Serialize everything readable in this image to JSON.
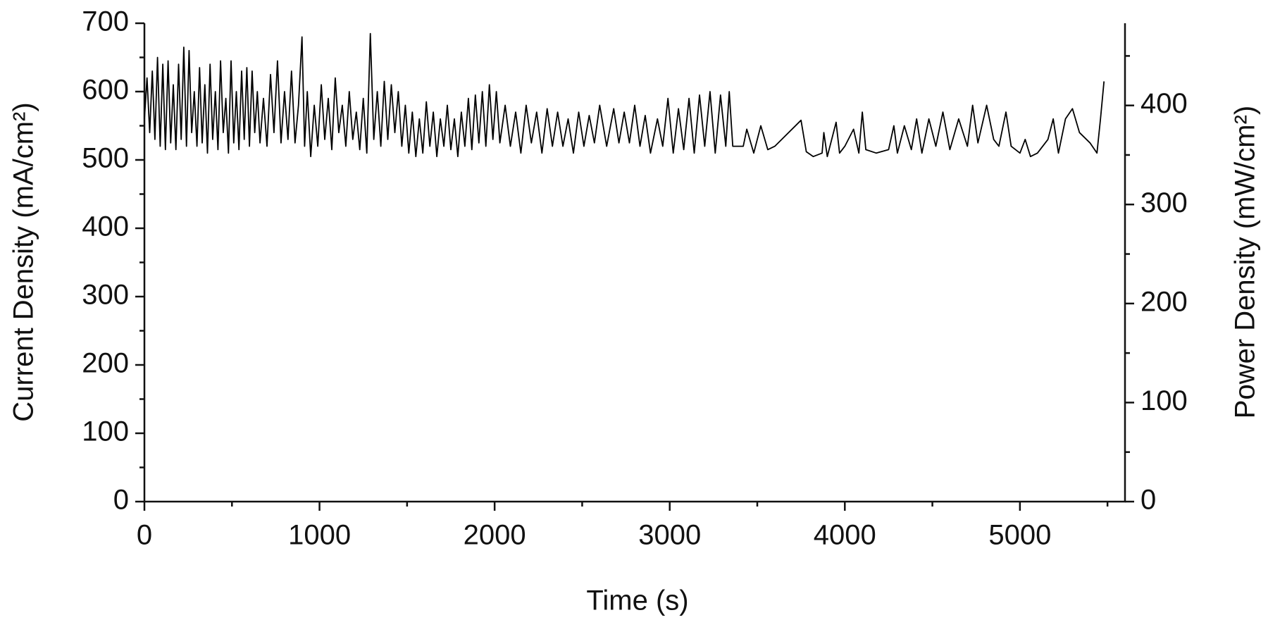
{
  "chart_data": {
    "type": "line",
    "xlabel": "Time (s)",
    "ylabel": "Current Density (mA/cm²)",
    "y2label": "Power Density (mW/cm²)",
    "color": "#000000",
    "xlim": [
      0,
      5600
    ],
    "xticks": [
      0,
      1000,
      2000,
      3000,
      4000,
      5000
    ],
    "xminorticks": [
      500,
      1500,
      2500,
      3500,
      4500,
      5500
    ],
    "ylim": [
      0,
      700
    ],
    "yticks": [
      0,
      100,
      200,
      300,
      400,
      500,
      600,
      700
    ],
    "yminorticks": [
      50,
      150,
      250,
      350,
      450,
      550,
      650
    ],
    "y2lim": [
      0,
      483
    ],
    "y2ticks": [
      0,
      100,
      200,
      300,
      400
    ],
    "y2minorticks": [
      50,
      150,
      250,
      350,
      450
    ],
    "x": [
      0,
      15,
      30,
      45,
      60,
      75,
      90,
      105,
      120,
      135,
      150,
      165,
      180,
      195,
      210,
      225,
      240,
      255,
      270,
      285,
      300,
      315,
      330,
      345,
      360,
      375,
      390,
      405,
      420,
      435,
      450,
      465,
      480,
      495,
      510,
      525,
      540,
      555,
      570,
      585,
      600,
      615,
      630,
      645,
      660,
      680,
      700,
      720,
      740,
      760,
      780,
      800,
      820,
      840,
      860,
      880,
      900,
      915,
      930,
      950,
      970,
      990,
      1010,
      1030,
      1050,
      1070,
      1090,
      1110,
      1130,
      1150,
      1170,
      1190,
      1210,
      1230,
      1250,
      1270,
      1290,
      1310,
      1330,
      1350,
      1370,
      1390,
      1410,
      1430,
      1450,
      1470,
      1490,
      1510,
      1530,
      1550,
      1570,
      1590,
      1610,
      1630,
      1650,
      1670,
      1690,
      1710,
      1730,
      1750,
      1770,
      1790,
      1810,
      1830,
      1850,
      1870,
      1890,
      1910,
      1930,
      1950,
      1970,
      1990,
      2010,
      2030,
      2060,
      2090,
      2120,
      2150,
      2180,
      2210,
      2240,
      2270,
      2300,
      2330,
      2360,
      2390,
      2420,
      2450,
      2480,
      2510,
      2540,
      2570,
      2600,
      2640,
      2680,
      2710,
      2740,
      2770,
      2800,
      2830,
      2860,
      2890,
      2930,
      2960,
      2990,
      3020,
      3050,
      3080,
      3110,
      3140,
      3170,
      3200,
      3230,
      3260,
      3290,
      3320,
      3340,
      3360,
      3420,
      3440,
      3480,
      3520,
      3560,
      3600,
      3750,
      3780,
      3820,
      3870,
      3880,
      3900,
      3950,
      3970,
      4000,
      4050,
      4080,
      4100,
      4120,
      4180,
      4250,
      4280,
      4300,
      4340,
      4380,
      4410,
      4440,
      4480,
      4520,
      4560,
      4600,
      4650,
      4700,
      4730,
      4760,
      4810,
      4850,
      4880,
      4920,
      4950,
      5000,
      5030,
      5060,
      5100,
      5160,
      5190,
      5220,
      5260,
      5300,
      5340,
      5400,
      5440,
      5460,
      5480
    ],
    "values": [
      560,
      620,
      540,
      630,
      530,
      650,
      520,
      640,
      515,
      645,
      525,
      610,
      515,
      640,
      530,
      665,
      520,
      660,
      540,
      600,
      520,
      635,
      525,
      610,
      510,
      640,
      530,
      600,
      515,
      645,
      540,
      590,
      510,
      645,
      525,
      600,
      515,
      630,
      530,
      635,
      520,
      630,
      540,
      600,
      525,
      590,
      520,
      625,
      540,
      645,
      525,
      600,
      530,
      630,
      525,
      580,
      680,
      520,
      600,
      505,
      580,
      520,
      610,
      530,
      590,
      515,
      620,
      540,
      580,
      520,
      600,
      530,
      570,
      515,
      590,
      510,
      685,
      530,
      600,
      520,
      615,
      530,
      610,
      540,
      600,
      520,
      580,
      510,
      570,
      505,
      560,
      510,
      585,
      520,
      570,
      505,
      560,
      520,
      580,
      515,
      560,
      505,
      570,
      520,
      590,
      515,
      595,
      525,
      600,
      520,
      610,
      530,
      600,
      525,
      580,
      520,
      570,
      510,
      580,
      525,
      570,
      510,
      575,
      520,
      570,
      520,
      560,
      510,
      570,
      520,
      565,
      525,
      580,
      520,
      575,
      525,
      570,
      525,
      580,
      520,
      565,
      510,
      560,
      520,
      590,
      510,
      575,
      515,
      590,
      510,
      595,
      520,
      600,
      510,
      595,
      520,
      600,
      520,
      520,
      545,
      510,
      550,
      515,
      520,
      558,
      512,
      505,
      510,
      540,
      505,
      555,
      510,
      520,
      545,
      510,
      570,
      515,
      510,
      515,
      550,
      510,
      550,
      515,
      560,
      510,
      560,
      520,
      570,
      515,
      560,
      520,
      580,
      525,
      580,
      530,
      520,
      570,
      520,
      510,
      530,
      505,
      510,
      530,
      560,
      510,
      560,
      575,
      540,
      525,
      510,
      560,
      615
    ]
  }
}
